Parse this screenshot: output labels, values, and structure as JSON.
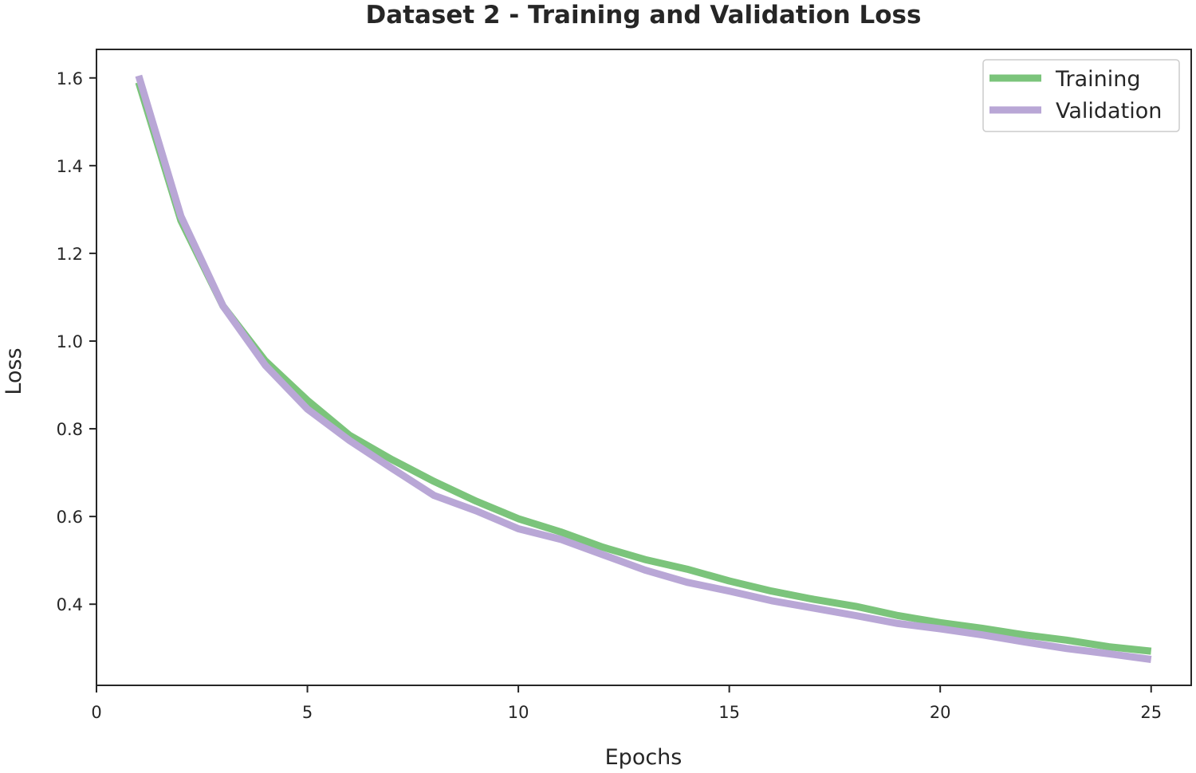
{
  "chart_data": {
    "type": "line",
    "title": "Dataset 2 - Training and Validation Loss",
    "xlabel": "Epochs",
    "ylabel": "Loss",
    "xlim": [
      0,
      25.95
    ],
    "ylim": [
      0.215,
      1.665
    ],
    "xticks": [
      0,
      5,
      10,
      15,
      20,
      25
    ],
    "yticks": [
      0.4,
      0.6,
      0.8,
      1.0,
      1.2,
      1.4,
      1.6
    ],
    "ytick_labels": [
      "0.4",
      "0.6",
      "0.8",
      "1.0",
      "1.2",
      "1.4",
      "1.6"
    ],
    "legend_position": "top-right",
    "grid": false,
    "x": [
      1,
      2,
      3,
      4,
      5,
      6,
      7,
      8,
      9,
      10,
      11,
      12,
      13,
      14,
      15,
      16,
      17,
      18,
      19,
      20,
      21,
      22,
      23,
      24,
      25
    ],
    "series": [
      {
        "name": "Training",
        "color": "#7bc47b",
        "values": [
          1.59,
          1.275,
          1.08,
          0.955,
          0.865,
          0.785,
          0.73,
          0.68,
          0.635,
          0.595,
          0.565,
          0.53,
          0.502,
          0.48,
          0.453,
          0.43,
          0.411,
          0.395,
          0.374,
          0.358,
          0.345,
          0.33,
          0.318,
          0.303,
          0.293
        ]
      },
      {
        "name": "Validation",
        "color": "#b9a7d6",
        "values": [
          1.605,
          1.285,
          1.08,
          0.945,
          0.845,
          0.773,
          0.71,
          0.648,
          0.613,
          0.572,
          0.548,
          0.513,
          0.478,
          0.45,
          0.43,
          0.408,
          0.391,
          0.374,
          0.356,
          0.344,
          0.33,
          0.314,
          0.299,
          0.287,
          0.274
        ]
      }
    ]
  }
}
